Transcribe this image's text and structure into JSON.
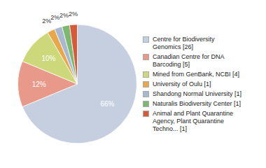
{
  "chart_data": {
    "type": "pie",
    "categories": [
      "Centre for Biodiversity\nGenomics [26]",
      "Canadian Centre for DNA\nBarcoding [5]",
      "Mined from GenBank, NCBI [4]",
      "University of Oulu [1]",
      "Shandong Normal University [1]",
      "Naturalis Biodiversity Center [1]",
      "Animal and Plant Quarantine\nAgency, Plant Quarantine\nTechno... [1]"
    ],
    "values": [
      66,
      12,
      10,
      2,
      2,
      2,
      2
    ],
    "value_labels": [
      "66%",
      "12%",
      "10%",
      "2%",
      "2%",
      "2%",
      "2%"
    ],
    "colors": [
      "#c5cfe0",
      "#e8998a",
      "#cdd87a",
      "#e8a84a",
      "#a8b8d0",
      "#7db870",
      "#d45a3a"
    ],
    "data_labels": true,
    "legend": "right"
  }
}
